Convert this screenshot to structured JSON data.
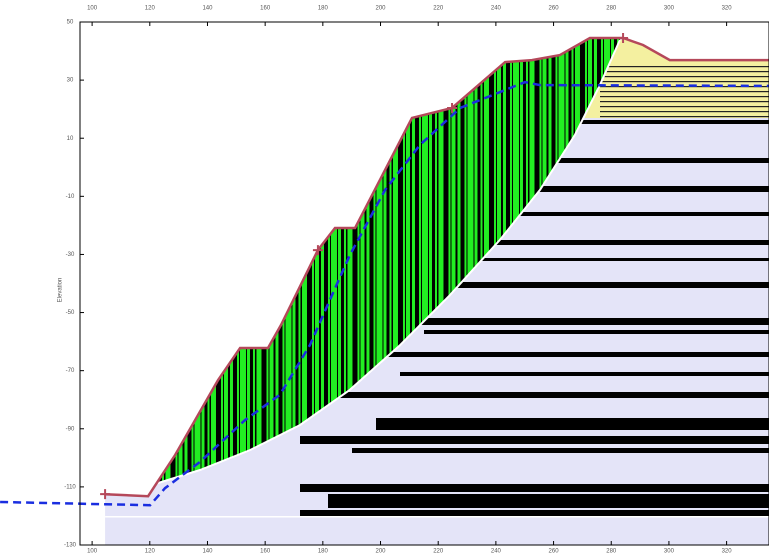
{
  "chart_data": {
    "type": "line",
    "y_label": "Elevation",
    "xlim": [
      95.8,
      334.7
    ],
    "ylim": [
      -130,
      50
    ],
    "xticks": [
      100,
      120,
      140,
      160,
      180,
      200,
      220,
      240,
      260,
      280,
      300,
      320
    ],
    "yticks": [
      50,
      30,
      10,
      -10,
      -30,
      -50,
      -70,
      -90,
      -110,
      -130
    ],
    "series": [
      {
        "color": "#b5485a",
        "dash": false,
        "x": [
          104.5,
          119.4,
          128.8,
          143.7,
          151.3,
          161.0,
          165.5,
          178.3,
          184.2,
          191.2,
          210.9,
          224.8,
          243.2,
          252.5,
          262.2,
          272.6,
          284.1,
          291.0,
          300.3,
          334.7
        ],
        "values": [
          -112.5,
          -113.2,
          -99.0,
          -73.2,
          -62.2,
          -62.2,
          -54.3,
          -28.5,
          -20.9,
          -20.9,
          17.0,
          20.4,
          36.2,
          36.9,
          38.6,
          44.5,
          44.5,
          42.1,
          36.9,
          36.9
        ]
      },
      {
        "color": "#1a2ee0",
        "dash": true,
        "x": [
          68.1,
          120.1,
          125.3,
          137.4,
          153.0,
          165.1,
          175.5,
          182.4,
          189.4,
          201.6,
          213.7,
          227.6,
          241.5,
          250.1,
          255.3,
          334.7
        ],
        "values": [
          -115.2,
          -116.3,
          -110.4,
          -101.4,
          -87.0,
          -78.3,
          -61.2,
          -45.7,
          -30.2,
          -7.8,
          7.7,
          20.4,
          25.9,
          29.3,
          28.3,
          28.0
        ]
      },
      {
        "color": "#ffffff",
        "dash": false,
        "x": [
          121.8,
          137.4,
          154.8,
          172.1,
          189.4,
          206.8,
          224.1,
          241.4,
          255.3,
          267.4,
          276.1,
          283.0
        ],
        "values": [
          -109.0,
          -104.2,
          -97.3,
          -88.7,
          -76.6,
          -61.2,
          -44.0,
          -25.0,
          -7.8,
          11.1,
          28.4,
          43.8
        ]
      }
    ]
  }
}
